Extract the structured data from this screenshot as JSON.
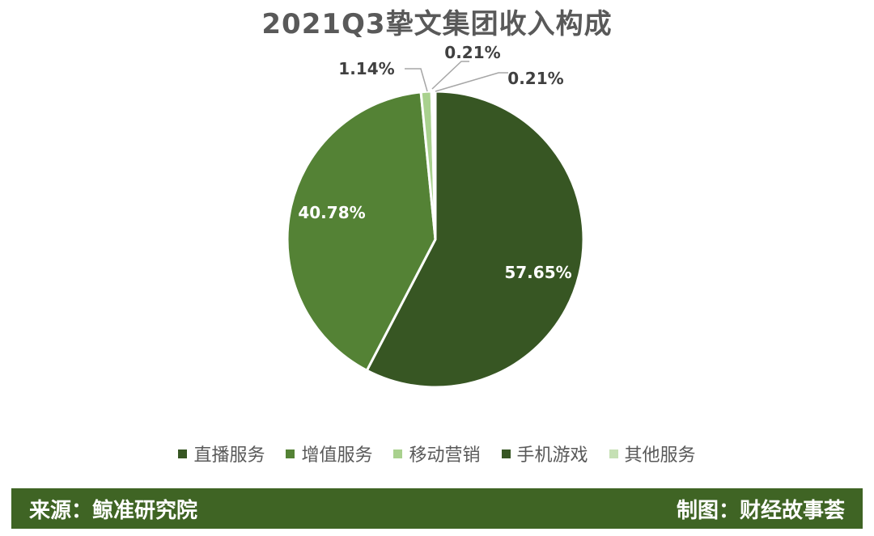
{
  "title": "2021Q3挚文集团收入构成",
  "chart_data": {
    "type": "pie",
    "title": "2021Q3挚文集团收入构成",
    "categories": [
      "直播服务",
      "增值服务",
      "移动营销",
      "手机游戏",
      "其他服务"
    ],
    "values": [
      57.65,
      40.78,
      1.14,
      0.21,
      0.21
    ],
    "labels": [
      "57.65%",
      "40.78%",
      "1.14%",
      "0.21%",
      "0.21%"
    ],
    "colors": [
      "#375623",
      "#548235",
      "#a9d18e",
      "#375623",
      "#c5e0b4"
    ],
    "legend": "bottom"
  },
  "footer": {
    "source": "来源：鲸准研究院",
    "credit": "制图：财经故事荟"
  }
}
